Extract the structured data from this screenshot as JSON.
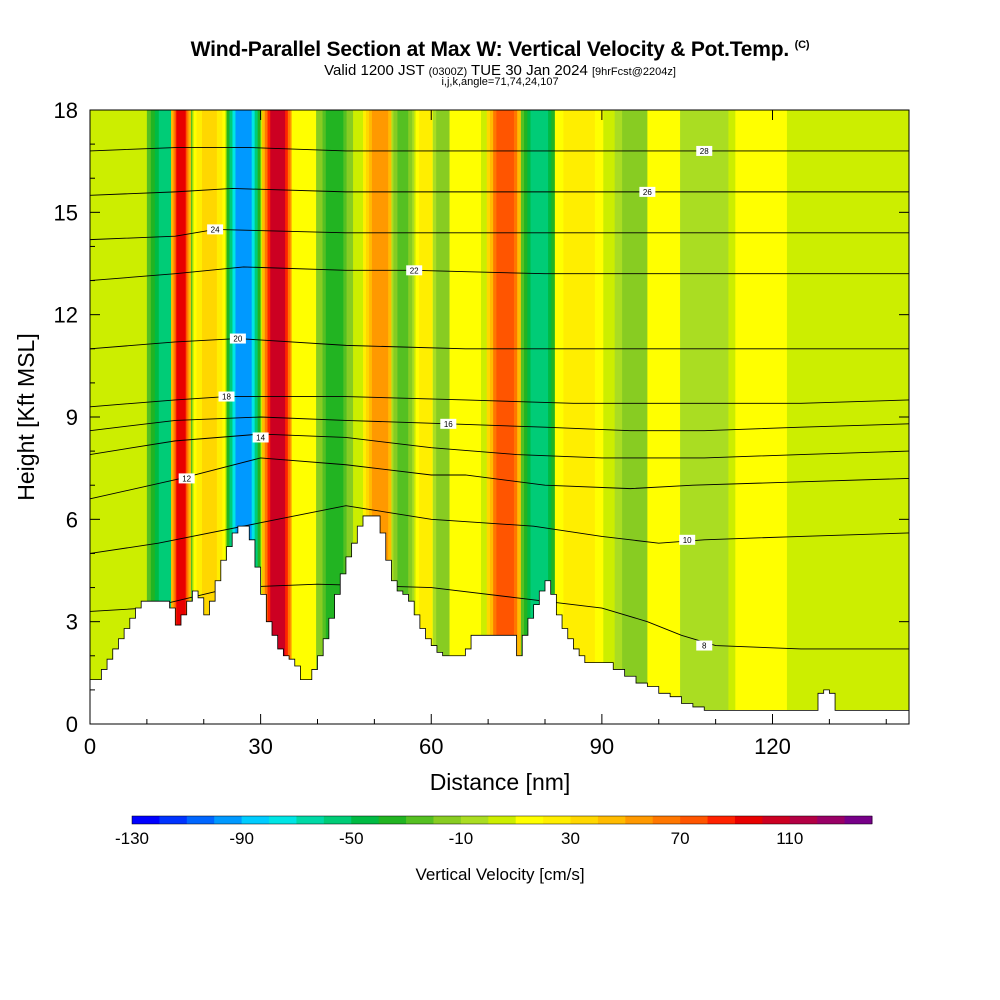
{
  "header": {
    "title": "Wind-Parallel Section at Max W: Vertical Velocity & Pot.Temp.",
    "copyright": "(C)",
    "valid_prefix": "Valid 1200 JST",
    "valid_utc": "(0300Z)",
    "valid_date": "TUE 30 Jan 2024",
    "forecast": "[9hrFcst@2204z]",
    "index_line": "i,j,k,angle=71,74,24,107"
  },
  "chart_data": {
    "type": "heatmap",
    "xlabel": "Distance [nm]",
    "ylabel": "Height [Kft MSL]",
    "xlim": [
      0,
      144
    ],
    "ylim": [
      0,
      18
    ],
    "x_ticks": [
      0,
      30,
      60,
      90,
      120
    ],
    "y_ticks": [
      0,
      3,
      6,
      9,
      12,
      15,
      18
    ],
    "colorbar": {
      "title": "Vertical Velocity [cm/s]",
      "tick_labels": [
        -130,
        -90,
        -50,
        -10,
        30,
        70,
        110
      ],
      "levels": [
        -130,
        -120,
        -110,
        -100,
        -90,
        -80,
        -70,
        -60,
        -50,
        -40,
        -30,
        -20,
        -10,
        0,
        10,
        20,
        30,
        40,
        50,
        60,
        70,
        80,
        90,
        100,
        110,
        120,
        130,
        140
      ],
      "colors": [
        "#0000ff",
        "#0033ff",
        "#0066ff",
        "#0099ff",
        "#00ccff",
        "#00e5e5",
        "#00d9a6",
        "#00cc77",
        "#00bb44",
        "#22b422",
        "#55c022",
        "#88cc22",
        "#aadd22",
        "#ccee00",
        "#ffff00",
        "#ffee00",
        "#ffd700",
        "#ffbb00",
        "#ff9900",
        "#ff7700",
        "#ff5500",
        "#ff2200",
        "#e80000",
        "#cc0022",
        "#b30044",
        "#990066",
        "#770088"
      ]
    },
    "terrain_profile": {
      "x": [
        0,
        2,
        3,
        4,
        5,
        6,
        7,
        8,
        9,
        10,
        11,
        12,
        13,
        14,
        15,
        16,
        17,
        18,
        19,
        20,
        21,
        22,
        23,
        24,
        25,
        26,
        27,
        28,
        29,
        30,
        31,
        32,
        33,
        34,
        35,
        36,
        37,
        38,
        39,
        40,
        41,
        42,
        43,
        44,
        45,
        46,
        47,
        48,
        49,
        50,
        51,
        52,
        53,
        54,
        55,
        56,
        57,
        58,
        59,
        60,
        61,
        62,
        63,
        64,
        65,
        66,
        67,
        68,
        69,
        70,
        71,
        72,
        73,
        74,
        75,
        76,
        77,
        78,
        79,
        80,
        81,
        82,
        83,
        84,
        85,
        86,
        87,
        88,
        89,
        90,
        92,
        94,
        96,
        98,
        100,
        102,
        104,
        106,
        108,
        110,
        112,
        114,
        116,
        118,
        120,
        122,
        124,
        126,
        128,
        129,
        130,
        131,
        132,
        134,
        136,
        138,
        140,
        142,
        144
      ],
      "y": [
        1.3,
        1.6,
        1.9,
        2.2,
        2.5,
        2.8,
        3.1,
        3.4,
        3.6,
        3.6,
        3.6,
        3.6,
        3.6,
        3.4,
        2.9,
        3.2,
        3.6,
        3.9,
        3.7,
        3.2,
        3.6,
        4.2,
        4.8,
        5.2,
        5.6,
        5.8,
        5.8,
        5.4,
        4.6,
        3.8,
        3.0,
        2.6,
        2.2,
        2.0,
        1.9,
        1.7,
        1.3,
        1.3,
        1.6,
        2.0,
        2.5,
        3.1,
        3.8,
        4.4,
        4.9,
        5.3,
        5.8,
        6.1,
        6.1,
        6.1,
        5.6,
        4.8,
        4.2,
        3.9,
        3.8,
        3.6,
        3.2,
        2.8,
        2.5,
        2.3,
        2.1,
        2.0,
        2.0,
        2.0,
        2.0,
        2.2,
        2.6,
        2.6,
        2.6,
        2.6,
        2.6,
        2.6,
        2.6,
        2.6,
        2.0,
        2.6,
        3.1,
        3.5,
        3.9,
        4.2,
        3.8,
        3.2,
        2.8,
        2.5,
        2.2,
        2.0,
        1.8,
        1.8,
        1.8,
        1.8,
        1.6,
        1.4,
        1.2,
        1.1,
        0.9,
        0.8,
        0.6,
        0.5,
        0.4,
        0.4,
        0.4,
        0.4,
        0.4,
        0.4,
        0.4,
        0.4,
        0.4,
        0.4,
        0.9,
        1.0,
        0.9,
        0.4,
        0.4,
        0.4,
        0.4,
        0.4,
        0.4,
        0.4,
        0.4
      ]
    },
    "velocity_bands": [
      {
        "x": 14,
        "value": -70
      },
      {
        "x": 16,
        "value": 110
      },
      {
        "x": 21,
        "value": 40
      },
      {
        "x": 27,
        "value": -110
      },
      {
        "x": 33,
        "value": 120
      },
      {
        "x": 38,
        "value": 20
      },
      {
        "x": 43,
        "value": -40
      },
      {
        "x": 51,
        "value": 60
      },
      {
        "x": 55,
        "value": -30
      },
      {
        "x": 59,
        "value": 30
      },
      {
        "x": 62,
        "value": -20
      },
      {
        "x": 66,
        "value": 20
      },
      {
        "x": 73,
        "value": 90
      },
      {
        "x": 79,
        "value": -70
      },
      {
        "x": 86,
        "value": 30
      },
      {
        "x": 96,
        "value": -20
      },
      {
        "x": 101,
        "value": 20
      },
      {
        "x": 108,
        "value": -10
      },
      {
        "x": 118,
        "value": 15
      },
      {
        "x": 130,
        "value": 10
      },
      {
        "x": 140,
        "value": 5
      }
    ],
    "contours": [
      {
        "value": 8,
        "levels": [
          [
            0,
            3.3
          ],
          [
            10,
            3.4
          ],
          [
            25,
            4.0
          ],
          [
            40,
            4.1
          ],
          [
            60,
            4.0
          ],
          [
            75,
            3.7
          ],
          [
            90,
            3.4
          ],
          [
            98,
            3.0
          ],
          [
            104,
            2.6
          ],
          [
            110,
            2.3
          ],
          [
            125,
            2.2
          ],
          [
            144,
            2.2
          ]
        ],
        "label": {
          "x": 108,
          "y": 2.3
        }
      },
      {
        "value": 10,
        "levels": [
          [
            0,
            5.0
          ],
          [
            12,
            5.3
          ],
          [
            30,
            5.9
          ],
          [
            45,
            6.4
          ],
          [
            60,
            6.0
          ],
          [
            78,
            5.8
          ],
          [
            90,
            5.5
          ],
          [
            100,
            5.3
          ],
          [
            108,
            5.4
          ],
          [
            125,
            5.5
          ],
          [
            144,
            5.6
          ]
        ],
        "label": {
          "x": 105,
          "y": 5.4
        }
      },
      {
        "value": 12,
        "levels": [
          [
            0,
            6.6
          ],
          [
            16,
            7.2
          ],
          [
            30,
            7.8
          ],
          [
            45,
            7.6
          ],
          [
            60,
            7.3
          ],
          [
            66,
            7.3
          ],
          [
            80,
            7.0
          ],
          [
            95,
            6.9
          ],
          [
            106,
            7.0
          ],
          [
            125,
            7.1
          ],
          [
            144,
            7.2
          ]
        ],
        "label": {
          "x": 17,
          "y": 7.2
        }
      },
      {
        "value": 14,
        "levels": [
          [
            0,
            7.9
          ],
          [
            15,
            8.3
          ],
          [
            30,
            8.5
          ],
          [
            45,
            8.4
          ],
          [
            60,
            8.1
          ],
          [
            75,
            7.9
          ],
          [
            90,
            7.8
          ],
          [
            108,
            7.8
          ],
          [
            125,
            7.9
          ],
          [
            144,
            8.0
          ]
        ],
        "label": {
          "x": 30,
          "y": 8.4
        }
      },
      {
        "value": 16,
        "levels": [
          [
            0,
            8.6
          ],
          [
            15,
            8.9
          ],
          [
            30,
            9.0
          ],
          [
            45,
            8.9
          ],
          [
            63,
            8.8
          ],
          [
            80,
            8.7
          ],
          [
            95,
            8.6
          ],
          [
            108,
            8.6
          ],
          [
            125,
            8.7
          ],
          [
            144,
            8.8
          ]
        ],
        "label": {
          "x": 63,
          "y": 8.8
        }
      },
      {
        "value": 18,
        "levels": [
          [
            0,
            9.3
          ],
          [
            15,
            9.5
          ],
          [
            24,
            9.6
          ],
          [
            45,
            9.6
          ],
          [
            66,
            9.5
          ],
          [
            85,
            9.4
          ],
          [
            108,
            9.4
          ],
          [
            125,
            9.4
          ],
          [
            144,
            9.5
          ]
        ],
        "label": {
          "x": 24,
          "y": 9.6
        }
      },
      {
        "value": 20,
        "levels": [
          [
            0,
            11.0
          ],
          [
            15,
            11.2
          ],
          [
            26,
            11.3
          ],
          [
            45,
            11.1
          ],
          [
            66,
            11.0
          ],
          [
            85,
            11.0
          ],
          [
            96,
            11.0
          ],
          [
            125,
            11.0
          ],
          [
            144,
            11.0
          ]
        ],
        "label": {
          "x": 26,
          "y": 11.3
        }
      },
      {
        "value": 22,
        "levels": [
          [
            0,
            13.0
          ],
          [
            15,
            13.2
          ],
          [
            27,
            13.4
          ],
          [
            45,
            13.3
          ],
          [
            57,
            13.3
          ],
          [
            80,
            13.2
          ],
          [
            95,
            13.2
          ],
          [
            125,
            13.2
          ],
          [
            144,
            13.2
          ]
        ],
        "label": {
          "x": 57,
          "y": 13.3
        }
      },
      {
        "value": 24,
        "levels": [
          [
            0,
            14.2
          ],
          [
            15,
            14.3
          ],
          [
            22,
            14.5
          ],
          [
            45,
            14.4
          ],
          [
            65,
            14.4
          ],
          [
            85,
            14.4
          ],
          [
            101,
            14.4
          ],
          [
            125,
            14.4
          ],
          [
            144,
            14.4
          ]
        ],
        "label": {
          "x": 22,
          "y": 14.5
        }
      },
      {
        "value": 26,
        "levels": [
          [
            0,
            15.5
          ],
          [
            15,
            15.6
          ],
          [
            25,
            15.7
          ],
          [
            45,
            15.6
          ],
          [
            65,
            15.6
          ],
          [
            85,
            15.6
          ],
          [
            98,
            15.6
          ],
          [
            125,
            15.6
          ],
          [
            144,
            15.6
          ]
        ],
        "label": {
          "x": 98,
          "y": 15.6
        }
      },
      {
        "value": 28,
        "levels": [
          [
            0,
            16.8
          ],
          [
            15,
            16.9
          ],
          [
            28,
            16.9
          ],
          [
            45,
            16.8
          ],
          [
            65,
            16.8
          ],
          [
            85,
            16.8
          ],
          [
            108,
            16.8
          ],
          [
            125,
            16.8
          ],
          [
            144,
            16.8
          ]
        ],
        "label": {
          "x": 108,
          "y": 16.8
        }
      }
    ]
  }
}
